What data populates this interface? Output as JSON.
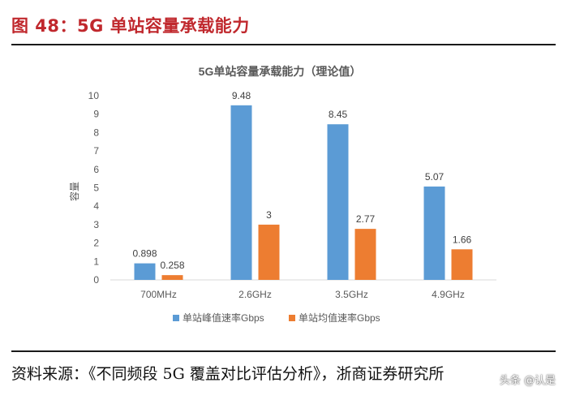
{
  "figure": {
    "header": "图 48：5G 单站容量承载能力",
    "source": "资料来源：《不同频段 5G 覆盖对比评估分析》，浙商证券研究所",
    "watermark": "头条 @认是"
  },
  "colors": {
    "header_red": "#c0282d",
    "peak_blue": "#5b9bd5",
    "avg_orange": "#ed7d31"
  },
  "chart_data": {
    "type": "bar",
    "title": "5G单站容量承载能力（理论值）",
    "ylabel": "容量",
    "xlabel": "",
    "categories": [
      "700MHz",
      "2.6GHz",
      "3.5GHz",
      "4.9GHz"
    ],
    "yticks": [
      "0",
      "1",
      "2",
      "3",
      "4",
      "5",
      "6",
      "7",
      "8",
      "9",
      "10"
    ],
    "ylim": [
      0,
      10
    ],
    "grid": false,
    "legend_position": "bottom",
    "series": [
      {
        "name": "单站峰值速率Gbps",
        "values": [
          0.898,
          9.48,
          8.45,
          5.07
        ],
        "labels": [
          "0.898",
          "9.48",
          "8.45",
          "5.07"
        ],
        "color": "#5b9bd5"
      },
      {
        "name": "单站均值速率Gbps",
        "values": [
          0.258,
          3,
          2.77,
          1.66
        ],
        "labels": [
          "0.258",
          "3",
          "2.77",
          "1.66"
        ],
        "color": "#ed7d31"
      }
    ]
  }
}
